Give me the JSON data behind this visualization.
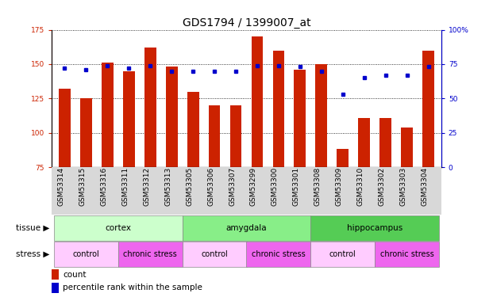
{
  "title": "GDS1794 / 1399007_at",
  "samples": [
    "GSM53314",
    "GSM53315",
    "GSM53316",
    "GSM53311",
    "GSM53312",
    "GSM53313",
    "GSM53305",
    "GSM53306",
    "GSM53307",
    "GSM53299",
    "GSM53300",
    "GSM53301",
    "GSM53308",
    "GSM53309",
    "GSM53310",
    "GSM53302",
    "GSM53303",
    "GSM53304"
  ],
  "counts": [
    132,
    125,
    151,
    145,
    162,
    148,
    130,
    120,
    120,
    170,
    160,
    146,
    150,
    88,
    111,
    111,
    104,
    160
  ],
  "percentiles": [
    72,
    71,
    74,
    72,
    74,
    70,
    70,
    70,
    70,
    74,
    74,
    73,
    70,
    53,
    65,
    67,
    67,
    73
  ],
  "ylim_left": [
    75,
    175
  ],
  "ylim_right": [
    0,
    100
  ],
  "yticks_left": [
    75,
    100,
    125,
    150,
    175
  ],
  "yticks_right": [
    0,
    25,
    50,
    75,
    100
  ],
  "bar_color": "#cc2200",
  "dot_color": "#0000cc",
  "tissue_groups": [
    {
      "label": "cortex",
      "start": 0,
      "end": 6,
      "color": "#ccffcc"
    },
    {
      "label": "amygdala",
      "start": 6,
      "end": 12,
      "color": "#88ee88"
    },
    {
      "label": "hippocampus",
      "start": 12,
      "end": 18,
      "color": "#55cc55"
    }
  ],
  "stress_groups": [
    {
      "label": "control",
      "start": 0,
      "end": 3,
      "color": "#ffccff"
    },
    {
      "label": "chronic stress",
      "start": 3,
      "end": 6,
      "color": "#ee66ee"
    },
    {
      "label": "control",
      "start": 6,
      "end": 9,
      "color": "#ffccff"
    },
    {
      "label": "chronic stress",
      "start": 9,
      "end": 12,
      "color": "#ee66ee"
    },
    {
      "label": "control",
      "start": 12,
      "end": 15,
      "color": "#ffccff"
    },
    {
      "label": "chronic stress",
      "start": 15,
      "end": 18,
      "color": "#ee66ee"
    }
  ],
  "title_fontsize": 10,
  "tick_fontsize": 6.5,
  "label_fontsize": 7.5,
  "row_label_fontsize": 7.5,
  "legend_fontsize": 7.5
}
